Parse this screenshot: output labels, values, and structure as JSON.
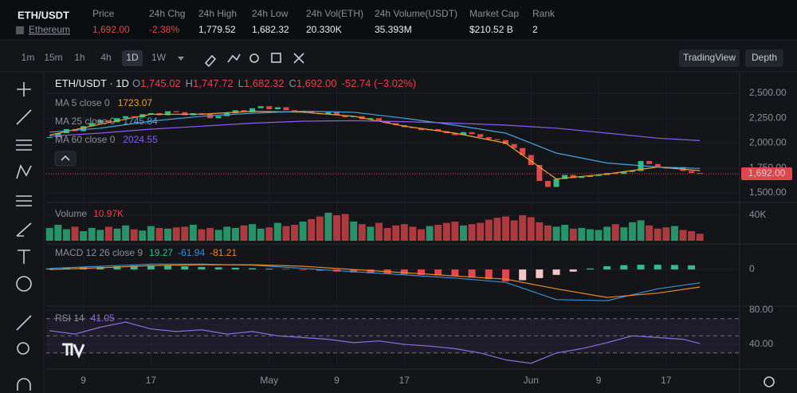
{
  "header": {
    "pair": "ETH/USDT",
    "name": "Ethereum",
    "stats": [
      {
        "label": "Price",
        "value": "1,692.00",
        "tone": "down"
      },
      {
        "label": "24h Chg",
        "value": "-2.38%",
        "tone": "down"
      },
      {
        "label": "24h High",
        "value": "1,779.52"
      },
      {
        "label": "24h Low",
        "value": "1,682.32"
      },
      {
        "label": "24h Vol(ETH)",
        "value": "20.330K"
      },
      {
        "label": "24h Volume(USDT)",
        "value": "35.393M"
      },
      {
        "label": "Market Cap",
        "value": "$210.52 B"
      },
      {
        "label": "Rank",
        "value": "2"
      }
    ]
  },
  "toolbar": {
    "intervals": [
      "1m",
      "15m",
      "1h",
      "4h",
      "1D",
      "1W"
    ],
    "active": 4,
    "views": [
      "TradingView",
      "Depth"
    ]
  },
  "chart_data": [
    {
      "type": "candlestick",
      "title": "ETH/USDT · 1D",
      "ohlc": [
        {
          "label": "O",
          "value": "1,745.02"
        },
        {
          "label": "H",
          "value": "1,747.72"
        },
        {
          "label": "L",
          "value": "1,682.32"
        },
        {
          "label": "C",
          "value": "1,692.00"
        }
      ],
      "change": "-52.74 (−3.02%)",
      "price_tag": "1,692.00",
      "up_color": "#2ebd85",
      "down_color": "#e0474c",
      "values": [
        2060,
        2100,
        2140,
        2120,
        2170,
        2200,
        2230,
        2210,
        2250,
        2270,
        2260,
        2290,
        2300,
        2280,
        2320,
        2310,
        2280,
        2300,
        2290,
        2250,
        2270,
        2300,
        2330,
        2310,
        2350,
        2370,
        2340,
        2360,
        2330,
        2310,
        2320,
        2300,
        2290,
        2310,
        2280,
        2260,
        2270,
        2240,
        2250,
        2220,
        2200,
        2180,
        2160,
        2150,
        2130,
        2140,
        2120,
        2100,
        2080,
        2110,
        2090,
        2060,
        2040,
        2030,
        1990,
        1950,
        1880,
        1780,
        1620,
        1560,
        1640,
        1680,
        1650,
        1660,
        1670,
        1680,
        1700,
        1690,
        1710,
        1720,
        1820,
        1790,
        1760,
        1745,
        1760,
        1720,
        1700,
        1692
      ],
      "series": [
        {
          "name": "MA 5 close 0",
          "color": "#f0a030",
          "x": [
            0,
            6,
            12,
            18,
            24,
            30,
            36,
            42,
            48,
            54,
            60,
            66,
            72,
            77
          ],
          "values": [
            2080,
            2190,
            2290,
            2290,
            2320,
            2310,
            2270,
            2170,
            2100,
            2000,
            1640,
            1690,
            1760,
            1723.07
          ]
        },
        {
          "name": "MA 25 close 0",
          "color": "#4aa3df",
          "x": [
            0,
            6,
            12,
            18,
            24,
            30,
            36,
            42,
            48,
            54,
            60,
            66,
            72,
            77
          ],
          "values": [
            2110,
            2150,
            2220,
            2270,
            2300,
            2320,
            2310,
            2250,
            2180,
            2100,
            1900,
            1800,
            1760,
            1745.84
          ]
        },
        {
          "name": "MA 60 close 0",
          "color": "#8a5cf6",
          "x": [
            0,
            6,
            12,
            18,
            24,
            30,
            36,
            42,
            48,
            54,
            60,
            66,
            72,
            77
          ],
          "values": [
            2070,
            2100,
            2140,
            2170,
            2200,
            2220,
            2225,
            2215,
            2200,
            2180,
            2150,
            2100,
            2050,
            2024.55
          ]
        }
      ],
      "xlim": [
        -0.4,
        81.7
      ],
      "xticks": [
        {
          "value": 4,
          "label": "9"
        },
        {
          "value": 12,
          "label": "17"
        },
        {
          "value": 26,
          "label": "May"
        },
        {
          "value": 34,
          "label": "9"
        },
        {
          "value": 42,
          "label": "17"
        },
        {
          "value": 57,
          "label": "Jun"
        },
        {
          "value": 65,
          "label": "9"
        },
        {
          "value": 73,
          "label": "17"
        }
      ],
      "ylim": [
        1420,
        2676
      ],
      "yticks": [
        {
          "value": 1500,
          "label": "1,500.00"
        },
        {
          "value": 1750,
          "label": "1,750.00"
        },
        {
          "value": 2000,
          "label": "2,000.00"
        },
        {
          "value": 2250,
          "label": "2,250.00"
        },
        {
          "value": 2500,
          "label": "2,500.00"
        }
      ]
    },
    {
      "type": "bar",
      "title": "Volume",
      "volume_label": "10.97K",
      "values": [
        20,
        25,
        18,
        22,
        15,
        20,
        17,
        22,
        19,
        24,
        18,
        16,
        23,
        20,
        19,
        21,
        22,
        25,
        18,
        20,
        17,
        22,
        20,
        24,
        26,
        19,
        21,
        28,
        23,
        25,
        30,
        34,
        38,
        44,
        40,
        42,
        30,
        26,
        22,
        28,
        20,
        24,
        26,
        22,
        18,
        23,
        25,
        28,
        30,
        24,
        26,
        28,
        33,
        36,
        38,
        32,
        40,
        37,
        29,
        24,
        22,
        25,
        19,
        20,
        18,
        17,
        22,
        26,
        21,
        29,
        32,
        24,
        19,
        21,
        23,
        17,
        15,
        10.97
      ],
      "ylim": [
        0,
        55
      ],
      "yticks": [
        {
          "value": 40,
          "label": "40K"
        }
      ]
    },
    {
      "type": "macd",
      "title": "MACD 12 26 close 9",
      "hist_x": [
        0,
        2,
        4,
        6,
        8,
        10,
        12,
        14,
        16,
        18,
        20,
        22,
        24,
        26,
        28,
        30,
        32,
        34,
        36,
        38,
        40,
        42,
        44,
        46,
        48,
        50,
        52,
        54,
        56,
        58,
        60,
        62,
        64,
        66,
        68,
        70,
        72,
        74,
        76
      ],
      "hist": [
        5,
        8,
        10,
        12,
        15,
        18,
        20,
        18,
        15,
        12,
        10,
        8,
        6,
        4,
        2,
        -3,
        -6,
        -10,
        -14,
        -18,
        -20,
        -22,
        -25,
        -28,
        -32,
        -38,
        -45,
        -55,
        -50,
        -40,
        -25,
        -10,
        5,
        15,
        20,
        22,
        22,
        21,
        19.27
      ],
      "series": [
        {
          "name": "MACD",
          "color": "#3a8fd8",
          "x": [
            0,
            6,
            12,
            18,
            24,
            30,
            36,
            42,
            48,
            54,
            60,
            66,
            72,
            77
          ],
          "values": [
            5,
            15,
            25,
            25,
            20,
            5,
            -10,
            -25,
            -40,
            -60,
            -140,
            -145,
            -90,
            -61.94
          ]
        },
        {
          "name": "Signal",
          "color": "#e88b2a",
          "x": [
            0,
            6,
            12,
            18,
            24,
            30,
            36,
            42,
            48,
            54,
            60,
            66,
            72,
            77
          ],
          "values": [
            0,
            8,
            18,
            22,
            22,
            15,
            0,
            -15,
            -30,
            -45,
            -90,
            -130,
            -110,
            -81.21
          ]
        }
      ],
      "ylim": [
        -174,
        104
      ],
      "yticks": [
        0
      ]
    },
    {
      "type": "line",
      "title": "RSI 14",
      "color": "#8a6fe0",
      "x": [
        0,
        3,
        6,
        9,
        12,
        15,
        18,
        21,
        24,
        27,
        30,
        33,
        36,
        39,
        42,
        45,
        48,
        51,
        54,
        57,
        60,
        63,
        66,
        69,
        72,
        75,
        77
      ],
      "values": [
        56,
        52,
        60,
        66,
        58,
        55,
        57,
        52,
        55,
        50,
        48,
        46,
        42,
        44,
        40,
        38,
        35,
        30,
        22,
        18,
        30,
        35,
        42,
        50,
        48,
        46,
        41.05
      ],
      "bands": [
        70,
        50,
        30
      ],
      "ylim": [
        14,
        83.7
      ],
      "yticks": [
        {
          "value": 80,
          "label": "80.00"
        },
        {
          "value": 40,
          "label": "40.00"
        }
      ]
    }
  ]
}
